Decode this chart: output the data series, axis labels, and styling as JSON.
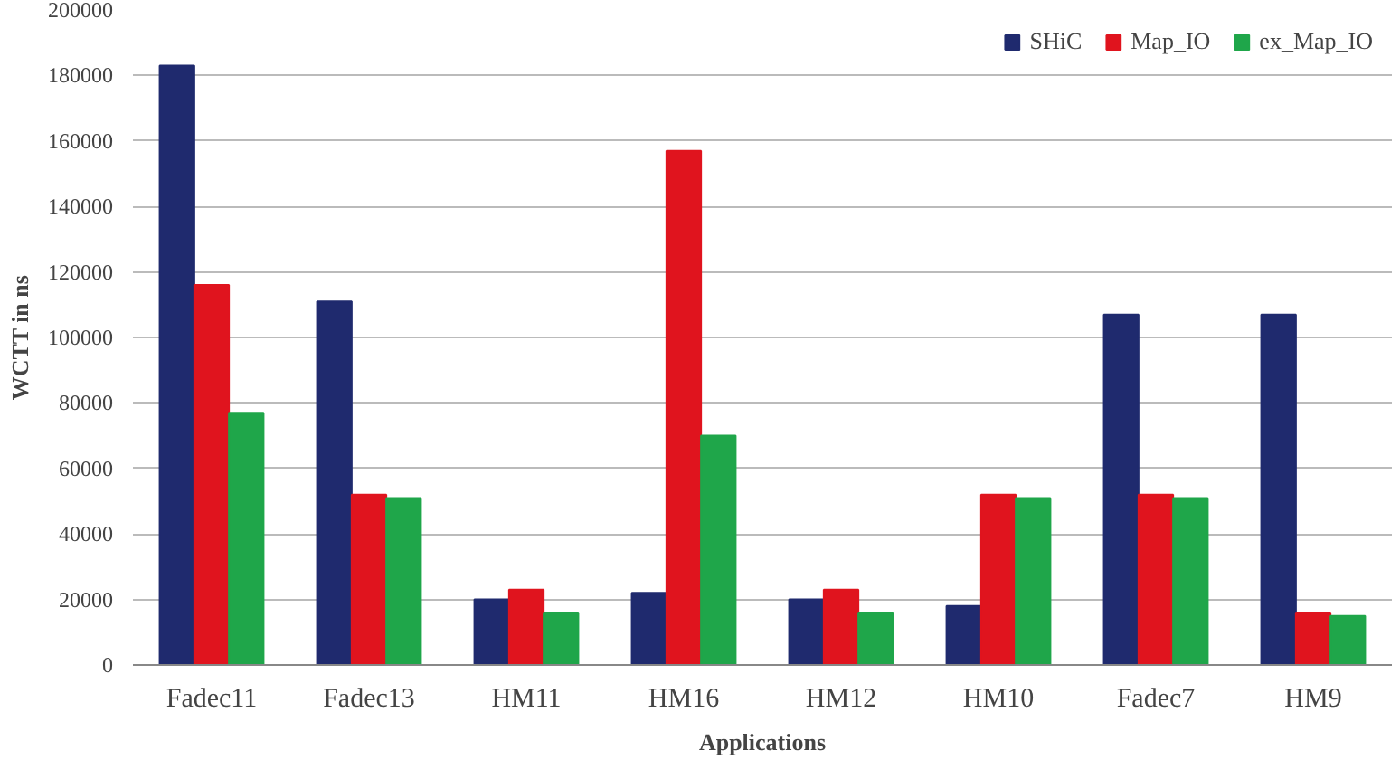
{
  "chart_data": {
    "type": "bar",
    "xlabel": "Applications",
    "ylabel": "WCTT in ns",
    "categories": [
      "Fadec11",
      "Fadec13",
      "HM11",
      "HM16",
      "HM12",
      "HM10",
      "Fadec7",
      "HM9"
    ],
    "series": [
      {
        "name": "SHiC",
        "color": "#1f2a6e",
        "values": [
          183000,
          111000,
          20000,
          22000,
          20000,
          18000,
          107000,
          107000
        ]
      },
      {
        "name": "Map_IO",
        "color": "#e0141e",
        "values": [
          116000,
          52000,
          23000,
          157000,
          23000,
          52000,
          52000,
          16000
        ]
      },
      {
        "name": "ex_Map_IO",
        "color": "#1fa64a",
        "values": [
          77000,
          51000,
          16000,
          70000,
          16000,
          51000,
          51000,
          15000
        ]
      }
    ],
    "ylim": [
      0,
      200000
    ],
    "yticks": [
      0,
      20000,
      40000,
      60000,
      80000,
      100000,
      120000,
      140000,
      160000,
      180000,
      200000
    ],
    "grid": "y",
    "legend": "top right"
  }
}
